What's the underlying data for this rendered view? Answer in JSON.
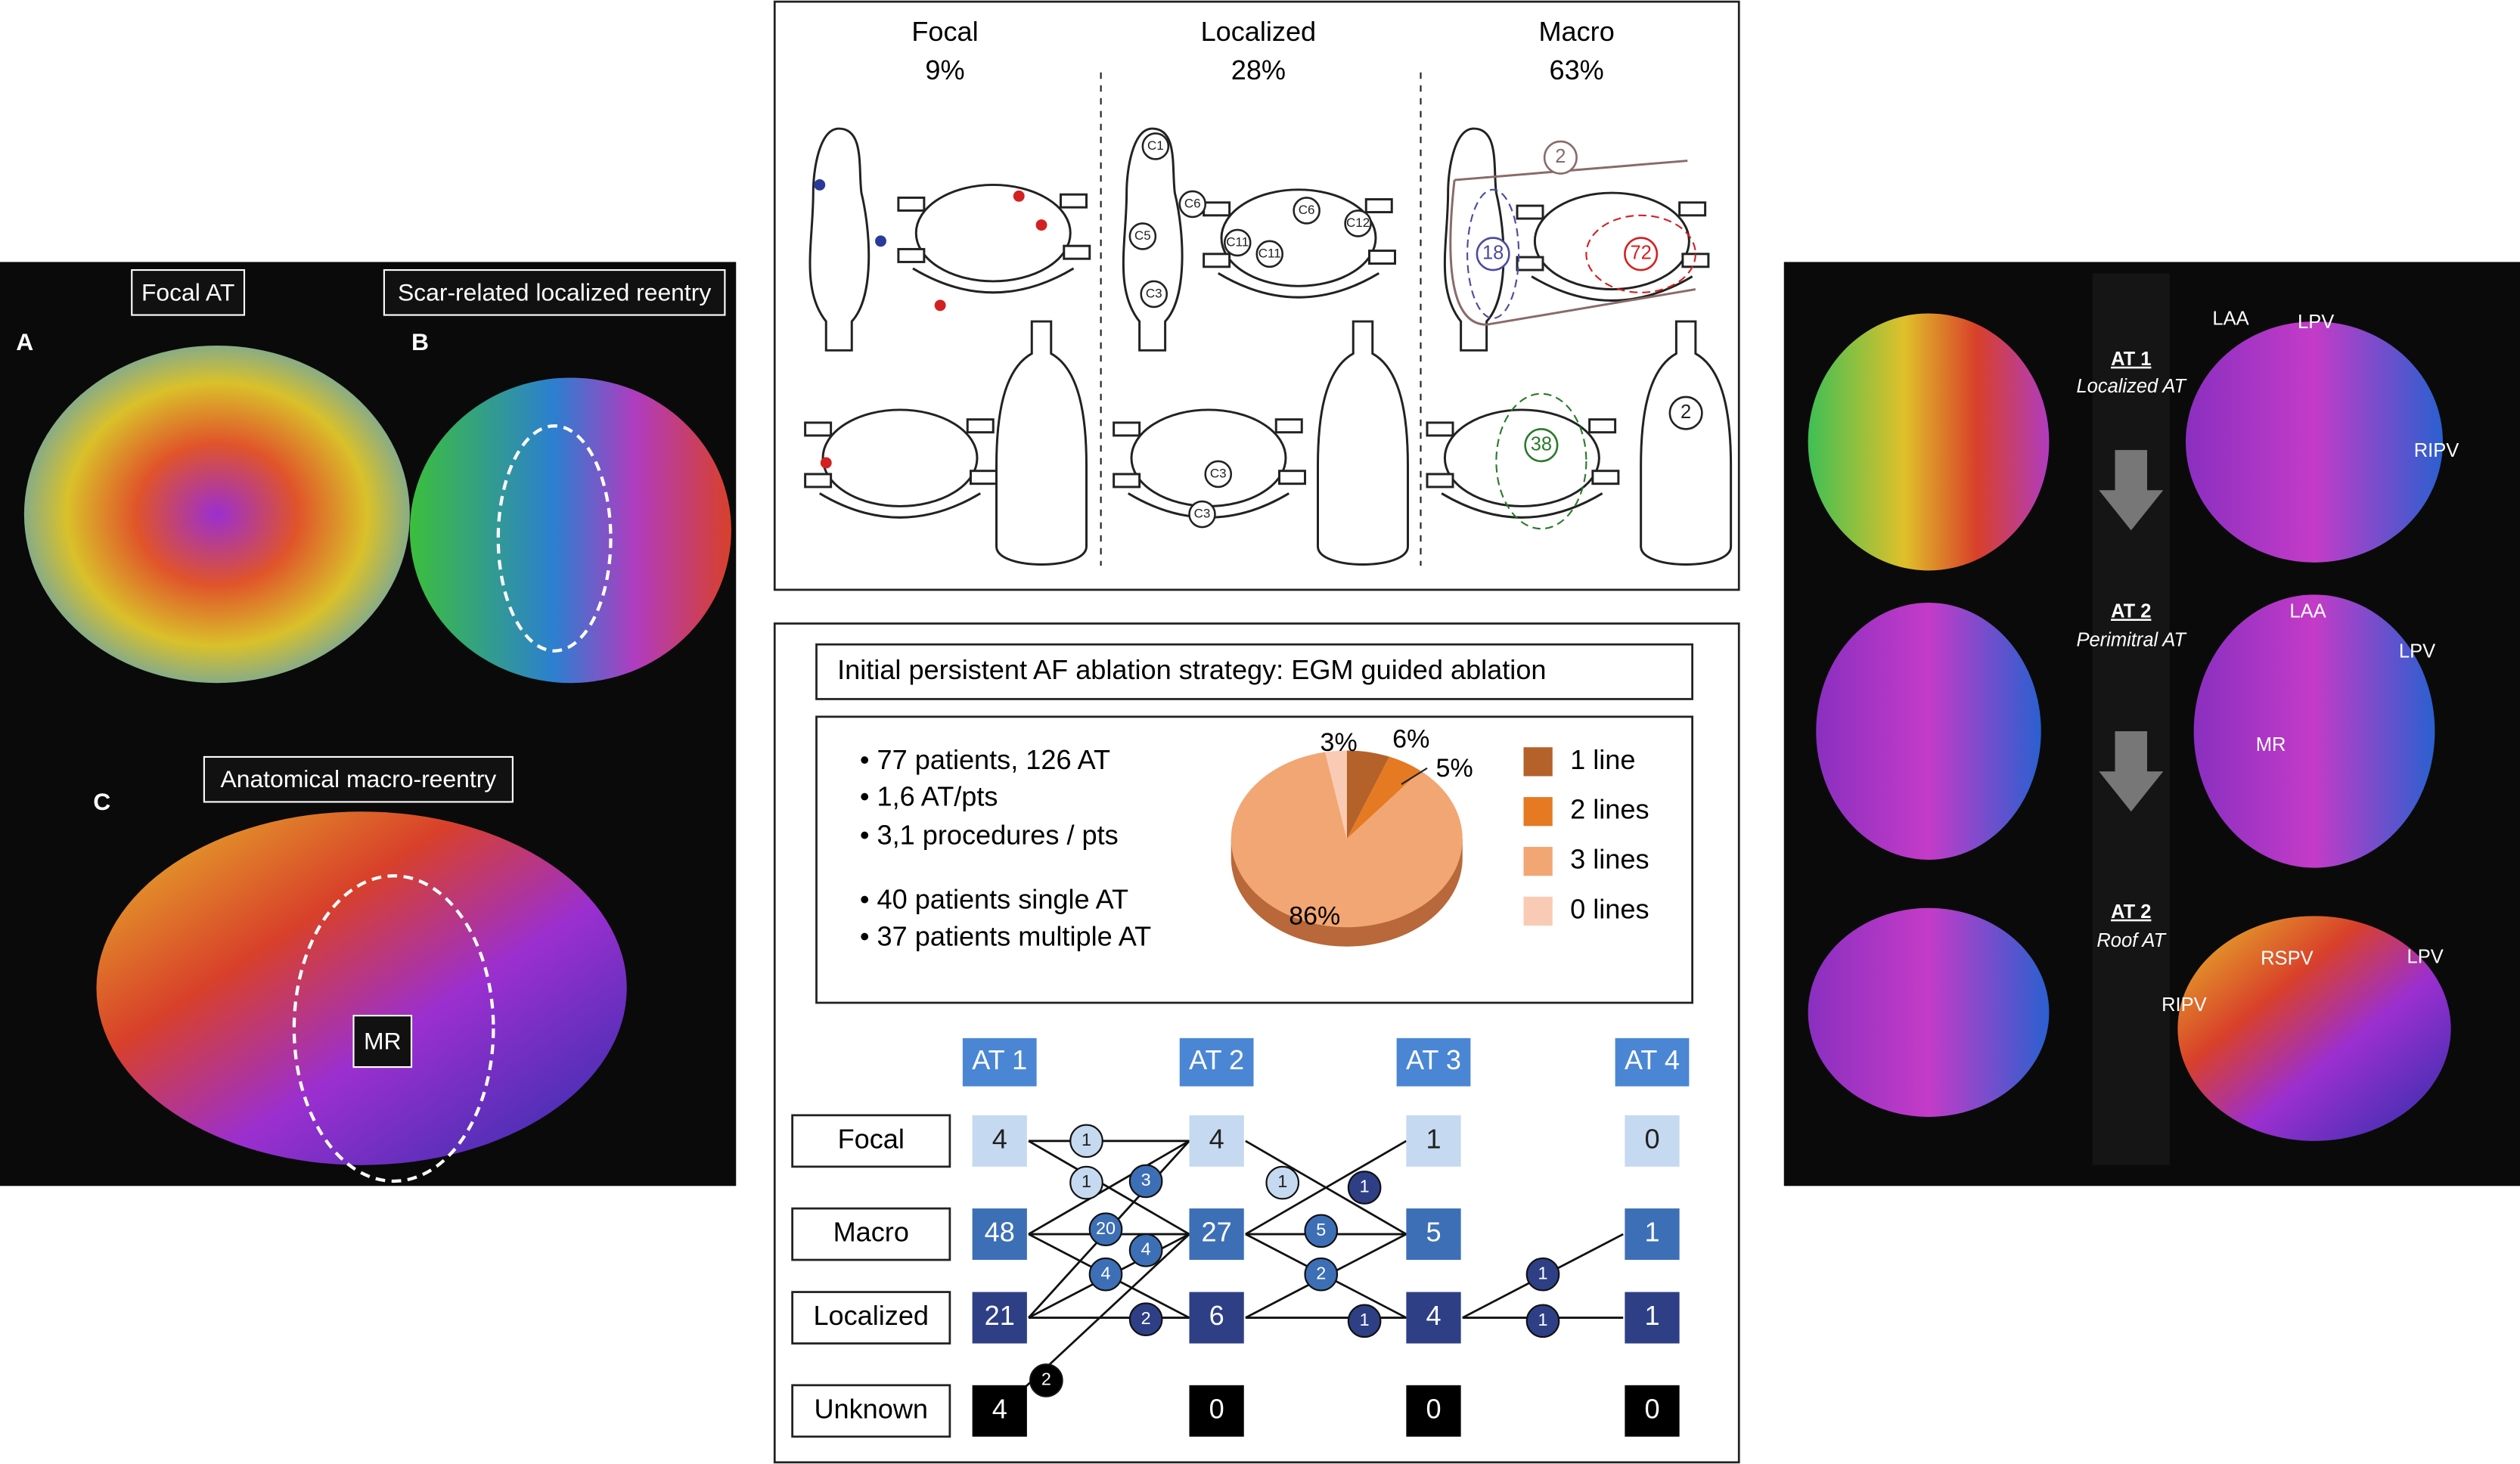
{
  "left_figure": {
    "panels": [
      {
        "letter": "A",
        "title": "Focal AT"
      },
      {
        "letter": "B",
        "title": "Scar-related localized reentry"
      },
      {
        "letter": "C",
        "title": "Anatomical macro-reentry",
        "region": "MR"
      }
    ]
  },
  "top_diagram": {
    "columns": [
      {
        "title": "Focal",
        "share": "9%"
      },
      {
        "title": "Localized",
        "share": "28%"
      },
      {
        "title": "Macro",
        "share": "63%"
      }
    ],
    "localized_sites": [
      "C1",
      "C6",
      "C5",
      "C3",
      "C11",
      "C6",
      "C11",
      "C12",
      "C3",
      "C3"
    ],
    "macro_circuits": [
      "2",
      "18",
      "72",
      "38",
      "2"
    ]
  },
  "strategy": {
    "title": "Initial persistent AF ablation strategy: EGM guided ablation",
    "facts": [
      "• 77 patients, 126 AT",
      "• 1,6 AT/pts",
      "• 3,1 procedures / pts",
      "• 40 patients single AT",
      "• 37 patients multiple AT"
    ]
  },
  "chart_data": {
    "type": "pie",
    "categories": [
      "1 line",
      "2 lines",
      "3 lines",
      "0 lines"
    ],
    "values": [
      6,
      5,
      86,
      3
    ],
    "value_labels": [
      "6%",
      "5%",
      "86%",
      "3%"
    ],
    "colors": [
      "#b5612a",
      "#e57a22",
      "#f2a673",
      "#f9cbb4"
    ]
  },
  "sequence": {
    "stages": [
      "AT 1",
      "AT 2",
      "AT 3",
      "AT 4"
    ],
    "rows": [
      "Focal",
      "Macro",
      "Localized",
      "Unknown"
    ],
    "counts": [
      [
        4,
        48,
        21,
        4
      ],
      [
        4,
        27,
        6,
        0
      ],
      [
        1,
        5,
        4,
        0
      ],
      [
        0,
        1,
        1,
        0
      ]
    ],
    "transitions": [
      1,
      1,
      3,
      20,
      4,
      4,
      2,
      2,
      1,
      1,
      5,
      2,
      1,
      1,
      1
    ]
  },
  "right_figure": {
    "steps": [
      {
        "title": "AT 1",
        "subtitle": "Localized AT"
      },
      {
        "title": "AT 2",
        "subtitle": "Perimitral AT"
      },
      {
        "title": "AT 2",
        "subtitle": "Roof AT"
      }
    ],
    "landmarks": [
      "LAA",
      "LPV",
      "RIPV",
      "LAA",
      "LPV",
      "MR",
      "RSPV",
      "LPV",
      "RIPV"
    ]
  }
}
